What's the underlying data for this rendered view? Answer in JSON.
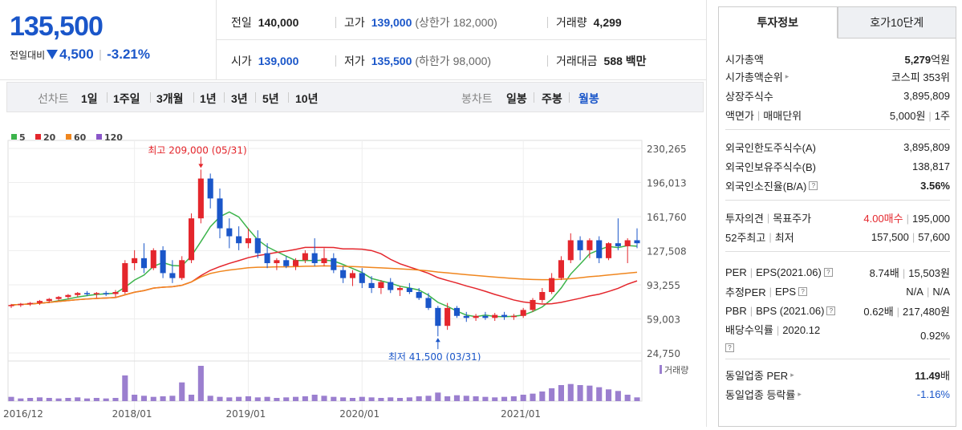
{
  "price": {
    "current": "135,500",
    "change_label": "전일대비",
    "change_value": "4,500",
    "change_pct": "-3.21%"
  },
  "summary": {
    "prev_close_label": "전일",
    "prev_close": "140,000",
    "high_label": "고가",
    "high": "139,000",
    "upper_limit": "(상한가 182,000)",
    "volume_label": "거래량",
    "volume": "4,299",
    "open_label": "시가",
    "open": "139,000",
    "low_label": "저가",
    "low": "135,500",
    "lower_limit": "(하한가 98,000)",
    "amount_label": "거래대금",
    "amount": "588 백만"
  },
  "period": {
    "line_label": "선차트",
    "line_items": [
      "1일",
      "1주일",
      "3개월",
      "1년",
      "3년",
      "5년",
      "10년"
    ],
    "candle_label": "봉차트",
    "candle_items": [
      "일봉",
      "주봉",
      "월봉"
    ],
    "selected": "월봉"
  },
  "chart_data": {
    "type": "candlestick",
    "legend": [
      {
        "name": "5",
        "color": "#3cb44b"
      },
      {
        "name": "20",
        "color": "#e4262c"
      },
      {
        "name": "60",
        "color": "#f0861e"
      },
      {
        "name": "120",
        "color": "#8a56c9"
      }
    ],
    "y_ticks": [
      "230,265",
      "196,013",
      "161,760",
      "127,508",
      "93,255",
      "59,003",
      "24,750"
    ],
    "y_range": [
      24750,
      230265
    ],
    "x_ticks": [
      "2016/12",
      "2018/01",
      "2019/01",
      "2020/01",
      "2021/01"
    ],
    "max_annotation": "최고 209,000 (05/31)",
    "min_annotation": "최저 41,500 (03/31)",
    "volume_label": "거래량",
    "up_color": "#e4262c",
    "down_color": "#1a56c9",
    "candles": [
      [
        72000,
        74000,
        70000,
        73000
      ],
      [
        73000,
        75000,
        71000,
        74000
      ],
      [
        74000,
        76000,
        72000,
        75000
      ],
      [
        75000,
        78000,
        73000,
        77000
      ],
      [
        77000,
        80000,
        75000,
        79000
      ],
      [
        79000,
        82000,
        77000,
        81000
      ],
      [
        81000,
        84000,
        79000,
        83000
      ],
      [
        83000,
        86000,
        81000,
        85000
      ],
      [
        85000,
        87000,
        82000,
        84000
      ],
      [
        84000,
        86000,
        80000,
        85000
      ],
      [
        85000,
        87000,
        82000,
        84000
      ],
      [
        84000,
        88000,
        81000,
        86000
      ],
      [
        86000,
        118000,
        84000,
        115000
      ],
      [
        115000,
        128000,
        108000,
        120000
      ],
      [
        120000,
        135000,
        105000,
        110000
      ],
      [
        110000,
        130000,
        108000,
        128000
      ],
      [
        128000,
        132000,
        100000,
        105000
      ],
      [
        105000,
        118000,
        95000,
        100000
      ],
      [
        100000,
        122000,
        98000,
        118000
      ],
      [
        118000,
        165000,
        115000,
        160000
      ],
      [
        160000,
        209000,
        155000,
        200000
      ],
      [
        200000,
        205000,
        170000,
        180000
      ],
      [
        180000,
        190000,
        140000,
        150000
      ],
      [
        150000,
        160000,
        130000,
        142000
      ],
      [
        142000,
        152000,
        128000,
        135000
      ],
      [
        135000,
        150000,
        130000,
        140000
      ],
      [
        140000,
        148000,
        120000,
        125000
      ],
      [
        125000,
        135000,
        110000,
        115000
      ],
      [
        115000,
        120000,
        108000,
        118000
      ],
      [
        118000,
        122000,
        110000,
        112000
      ],
      [
        112000,
        120000,
        108000,
        118000
      ],
      [
        118000,
        128000,
        115000,
        125000
      ],
      [
        125000,
        140000,
        112000,
        115000
      ],
      [
        115000,
        130000,
        112000,
        120000
      ],
      [
        120000,
        125000,
        105000,
        108000
      ],
      [
        108000,
        112000,
        95000,
        100000
      ],
      [
        100000,
        108000,
        92000,
        105000
      ],
      [
        105000,
        110000,
        90000,
        95000
      ],
      [
        95000,
        102000,
        85000,
        90000
      ],
      [
        90000,
        98000,
        84000,
        96000
      ],
      [
        96000,
        100000,
        85000,
        88000
      ],
      [
        88000,
        92000,
        82000,
        90000
      ],
      [
        90000,
        95000,
        84000,
        86000
      ],
      [
        86000,
        90000,
        78000,
        80000
      ],
      [
        80000,
        85000,
        68000,
        70000
      ],
      [
        70000,
        72000,
        41500,
        52000
      ],
      [
        52000,
        75000,
        48000,
        70000
      ],
      [
        70000,
        72000,
        60000,
        62000
      ],
      [
        62000,
        66000,
        56000,
        60000
      ],
      [
        60000,
        64000,
        57000,
        62000
      ],
      [
        62000,
        66000,
        58000,
        60000
      ],
      [
        60000,
        65000,
        57000,
        63000
      ],
      [
        63000,
        66000,
        58000,
        61000
      ],
      [
        61000,
        64000,
        58000,
        62000
      ],
      [
        62000,
        70000,
        60000,
        68000
      ],
      [
        68000,
        80000,
        66000,
        78000
      ],
      [
        78000,
        90000,
        75000,
        86000
      ],
      [
        86000,
        105000,
        84000,
        100000
      ],
      [
        100000,
        122000,
        98000,
        118000
      ],
      [
        118000,
        145000,
        115000,
        138000
      ],
      [
        138000,
        142000,
        118000,
        128000
      ],
      [
        128000,
        140000,
        120000,
        138000
      ],
      [
        138000,
        142000,
        115000,
        120000
      ],
      [
        120000,
        136000,
        118000,
        135000
      ],
      [
        135000,
        160000,
        128000,
        132000
      ],
      [
        132000,
        140000,
        115000,
        138000
      ],
      [
        138000,
        150000,
        130000,
        135000
      ]
    ],
    "volumes": [
      8,
      5,
      6,
      7,
      6,
      5,
      6,
      7,
      5,
      6,
      5,
      6,
      48,
      12,
      10,
      8,
      9,
      10,
      35,
      12,
      66,
      10,
      8,
      7,
      8,
      9,
      7,
      8,
      6,
      7,
      8,
      9,
      12,
      10,
      8,
      7,
      6,
      8,
      7,
      6,
      7,
      6,
      7,
      9,
      10,
      16,
      9,
      11,
      10,
      9,
      8,
      7,
      8,
      9,
      12,
      14,
      18,
      24,
      30,
      32,
      30,
      29,
      26,
      22,
      19,
      12,
      7
    ]
  },
  "tabs": [
    "투자정보",
    "호가10단계"
  ],
  "invest": {
    "market_cap_label": "시가총액",
    "market_cap_value": "5,279",
    "market_cap_unit": "억원",
    "rank_label": "시가총액순위",
    "rank_value": "코스피 353위",
    "shares_label": "상장주식수",
    "shares_value": "3,895,809",
    "par_label": "액면가",
    "unit_label": "매매단위",
    "par_value": "5,000원",
    "unit_value": "1주",
    "foreign_limit_label": "외국인한도주식수(A)",
    "foreign_limit_value": "3,895,809",
    "foreign_hold_label": "외국인보유주식수(B)",
    "foreign_hold_value": "138,817",
    "foreign_rate_label": "외국인소진율(B/A)",
    "foreign_rate_value": "3.56%",
    "opinion_label": "투자의견",
    "target_label": "목표주가",
    "opinion_value": "4.00매수",
    "target_value": "195,000",
    "high52_label": "52주최고",
    "low52_label": "최저",
    "high52_value": "157,500",
    "low52_value": "57,600",
    "per_label": "PER",
    "eps_label": "EPS(2021.06)",
    "per_value": "8.74배",
    "eps_value": "15,503원",
    "est_per_label": "추정PER",
    "est_eps_label": "EPS",
    "est_per_value": "N/A",
    "est_eps_value": "N/A",
    "pbr_label": "PBR",
    "bps_label": "BPS (2021.06)",
    "pbr_value": "0.62배",
    "bps_value": "217,480원",
    "div_label": "배당수익률",
    "div_date": "2020.12",
    "div_value": "0.92%",
    "ind_per_label": "동일업종 PER",
    "ind_per_value": "11.49",
    "ind_per_unit": "배",
    "ind_change_label": "동일업종 등락률",
    "ind_change_value": "-1.16%"
  }
}
